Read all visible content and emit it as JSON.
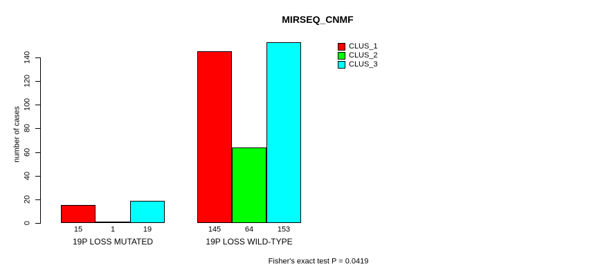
{
  "chart_data": {
    "type": "bar",
    "title": "MIRSEQ_CNMF",
    "xlabel": "",
    "ylabel": "number of cases",
    "ylim": [
      0,
      140
    ],
    "yticks": [
      0,
      20,
      40,
      60,
      80,
      100,
      120,
      140
    ],
    "categories": [
      "19P LOSS MUTATED",
      "19P LOSS WILD-TYPE"
    ],
    "series": [
      {
        "name": "CLUS_1",
        "color": "#ff0000",
        "values": [
          15,
          145
        ]
      },
      {
        "name": "CLUS_2",
        "color": "#00ff00",
        "values": [
          1,
          64
        ]
      },
      {
        "name": "CLUS_3",
        "color": "#00ffff",
        "values": [
          19,
          153
        ]
      }
    ],
    "bar_labels": [
      [
        "15",
        "1",
        "19"
      ],
      [
        "145",
        "64",
        "153"
      ]
    ],
    "legend_position": "top-right",
    "grid": false,
    "annotation": "Fisher's exact test P = 0.0419"
  },
  "colors": {
    "axis": "#000000",
    "background": "#ffffff",
    "clus_1": "#ff0000",
    "clus_2": "#00ff00",
    "clus_3": "#00ffff"
  }
}
